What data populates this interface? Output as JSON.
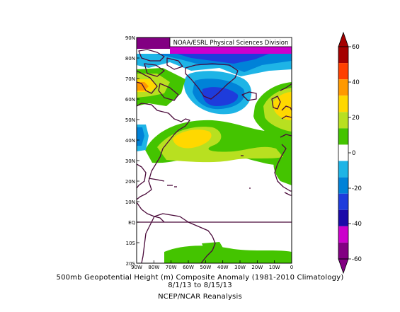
{
  "map": {
    "credit": "NOAA/ESRL Physical Sciences Division",
    "lat_labels": [
      "90N",
      "80N",
      "70N",
      "60N",
      "50N",
      "40N",
      "30N",
      "20N",
      "10N",
      "EQ",
      "10S",
      "20S"
    ],
    "lon_labels": [
      "90W",
      "80W",
      "70W",
      "60W",
      "50W",
      "40W",
      "30W",
      "20W",
      "10W",
      "0"
    ],
    "lon_range": [
      -90,
      0
    ],
    "lat_range": [
      -20,
      90
    ]
  },
  "colorbar": {
    "ticks": [
      "60",
      "40",
      "20",
      "0",
      "-20",
      "-40",
      "-60"
    ],
    "colors": {
      "c60": "#a50000",
      "c50": "#ff4000",
      "c40": "#ff9900",
      "c30": "#ffd800",
      "c20": "#b8e020",
      "c10": "#44c400",
      "c0": "#ffffff",
      "cm10": "#1eb4e6",
      "cm20": "#0082d8",
      "cm30": "#1e3cdc",
      "cm40": "#1a0aa8",
      "cm50": "#cc00cc",
      "cm60": "#820082"
    }
  },
  "caption": {
    "line1": "500mb Geopotential Height (m) Composite Anomaly (1981-2010 Climatology)",
    "line2": "8/1/13  to 8/15/13",
    "line3": "NCEP/NCAR Reanalysis"
  }
}
